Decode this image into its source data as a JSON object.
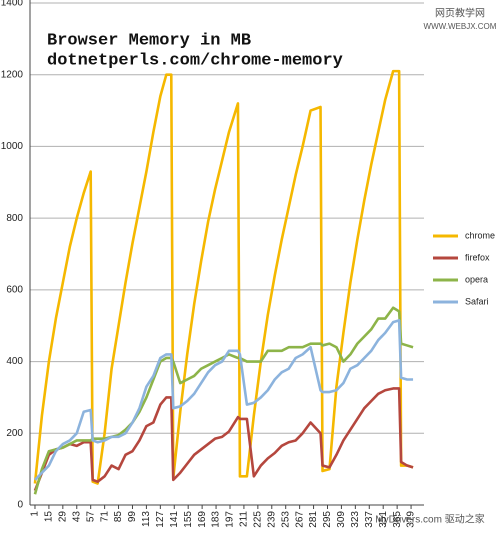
{
  "chart_data": {
    "type": "line",
    "title": "Browser Memory in MB",
    "subtitle": "dotnetperls.com/chrome-memory",
    "watermarks": [
      "网页教学网",
      "WWW.WEBJX.COM",
      "MyDrivers.com 驱动之家"
    ],
    "x": [
      1,
      8,
      15,
      22,
      29,
      36,
      43,
      50,
      57,
      59,
      64,
      71,
      78,
      85,
      92,
      99,
      106,
      113,
      120,
      127,
      133,
      138,
      140,
      147,
      154,
      161,
      168,
      175,
      182,
      189,
      196,
      205,
      207,
      214,
      221,
      228,
      235,
      242,
      249,
      256,
      263,
      270,
      278,
      288,
      290,
      297,
      304,
      311,
      318,
      325,
      332,
      339,
      346,
      353,
      361,
      367,
      369,
      375,
      381
    ],
    "xlim": [
      -4,
      392
    ],
    "xticks": [
      1,
      15,
      29,
      43,
      57,
      71,
      85,
      99,
      113,
      127,
      141,
      155,
      169,
      183,
      197,
      211,
      225,
      239,
      253,
      267,
      281,
      295,
      309,
      323,
      337,
      351,
      365,
      379
    ],
    "ylim": [
      0,
      1400
    ],
    "yticks": [
      0,
      200,
      400,
      600,
      800,
      1000,
      1200,
      1400
    ],
    "grid": true,
    "series": [
      {
        "name": "chrome",
        "color": "#f5b800",
        "values": [
          60,
          250,
          400,
          520,
          620,
          720,
          800,
          870,
          930,
          65,
          60,
          200,
          380,
          500,
          620,
          730,
          830,
          930,
          1040,
          1140,
          1200,
          1200,
          75,
          260,
          420,
          560,
          680,
          790,
          880,
          960,
          1040,
          1120,
          80,
          80,
          250,
          400,
          530,
          640,
          740,
          830,
          920,
          1000,
          1100,
          1110,
          95,
          100,
          330,
          480,
          620,
          740,
          850,
          950,
          1040,
          1130,
          1210,
          1210,
          110,
          110,
          105
        ]
      },
      {
        "name": "firefox",
        "color": "#b5473e",
        "values": [
          40,
          90,
          140,
          155,
          160,
          170,
          165,
          175,
          175,
          70,
          65,
          80,
          110,
          100,
          140,
          150,
          180,
          220,
          230,
          280,
          300,
          300,
          70,
          90,
          115,
          140,
          155,
          170,
          185,
          190,
          205,
          245,
          240,
          240,
          80,
          110,
          130,
          145,
          165,
          175,
          180,
          200,
          230,
          200,
          110,
          105,
          140,
          180,
          210,
          240,
          270,
          290,
          310,
          320,
          325,
          325,
          120,
          110,
          105
        ]
      },
      {
        "name": "opera",
        "color": "#8db449",
        "values": [
          30,
          100,
          150,
          155,
          160,
          170,
          180,
          180,
          180,
          185,
          185,
          185,
          190,
          195,
          210,
          230,
          260,
          300,
          350,
          400,
          410,
          410,
          400,
          340,
          350,
          360,
          380,
          390,
          400,
          410,
          420,
          410,
          410,
          400,
          400,
          400,
          430,
          430,
          430,
          440,
          440,
          440,
          450,
          450,
          445,
          450,
          440,
          400,
          420,
          450,
          470,
          490,
          520,
          520,
          550,
          540,
          450,
          445,
          440
        ]
      },
      {
        "name": "Safari",
        "color": "#8cb3dd",
        "values": [
          70,
          90,
          110,
          150,
          170,
          180,
          200,
          260,
          265,
          180,
          175,
          180,
          190,
          190,
          200,
          230,
          270,
          330,
          360,
          410,
          420,
          420,
          270,
          275,
          290,
          310,
          340,
          370,
          390,
          400,
          430,
          430,
          420,
          280,
          285,
          300,
          320,
          350,
          370,
          380,
          410,
          420,
          440,
          320,
          315,
          315,
          320,
          340,
          380,
          390,
          410,
          430,
          460,
          480,
          510,
          515,
          355,
          350,
          350
        ]
      }
    ]
  }
}
